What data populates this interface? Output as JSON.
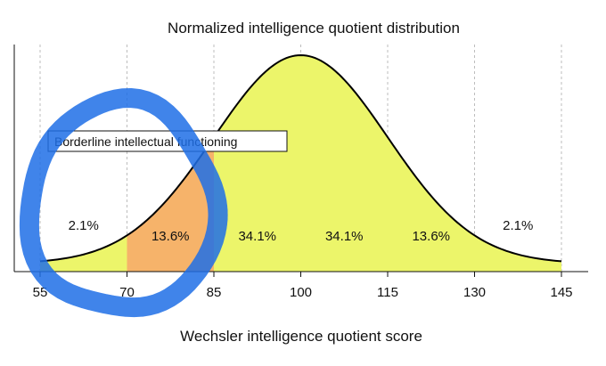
{
  "chart_data": {
    "type": "area",
    "title": "Normalized intelligence quotient distribution",
    "xlabel": "Wechsler intelligence quotient score",
    "ylabel": "",
    "distribution": {
      "mean": 100,
      "sd": 15
    },
    "xlim": [
      52,
      148
    ],
    "xticks": [
      55,
      70,
      85,
      100,
      115,
      130,
      145
    ],
    "grid": "vertical dashed lines at ticks",
    "bands": [
      {
        "from": 55,
        "to": 70,
        "label": "2.1%",
        "color": "#ecf56a"
      },
      {
        "from": 70,
        "to": 85,
        "label": "13.6%",
        "color": "#f6b36a"
      },
      {
        "from": 85,
        "to": 100,
        "label": "34.1%",
        "color": "#ecf56a"
      },
      {
        "from": 100,
        "to": 115,
        "label": "34.1%",
        "color": "#ecf56a"
      },
      {
        "from": 115,
        "to": 130,
        "label": "13.6%",
        "color": "#ecf56a"
      },
      {
        "from": 130,
        "to": 145,
        "label": "2.1%",
        "color": "#ecf56a"
      }
    ],
    "annotation": {
      "text": "Borderline intellectual functioning",
      "x_range": [
        70,
        85
      ]
    },
    "markup": {
      "shape": "hand-drawn circle",
      "color": "#1f6fe6"
    },
    "colors": {
      "curve": "#000000",
      "highlight": "#f6b36a",
      "fill": "#ecf56a",
      "pen": "#1f6fe6"
    }
  }
}
